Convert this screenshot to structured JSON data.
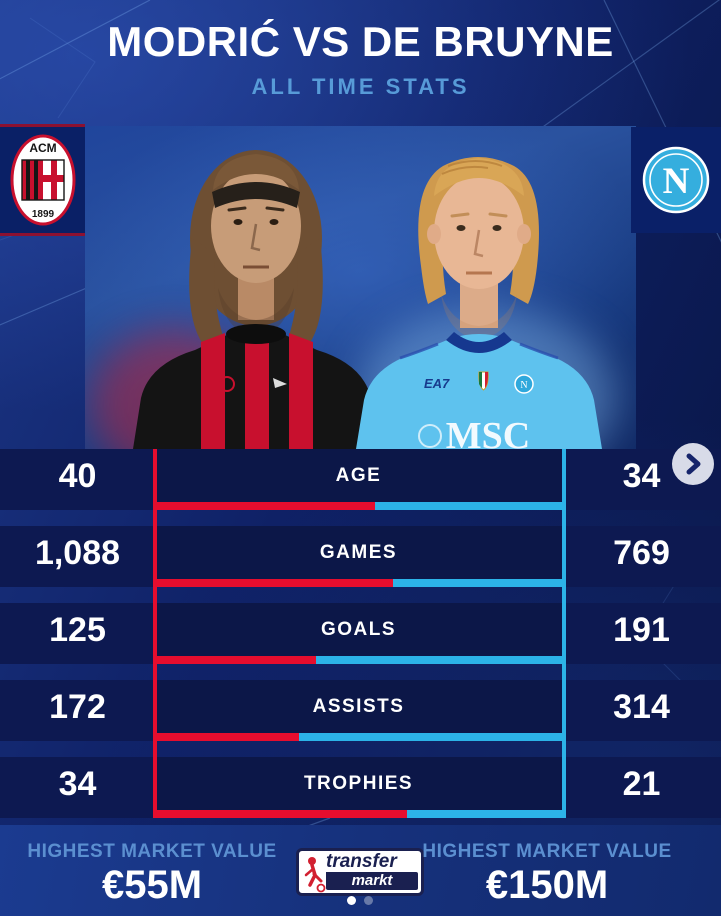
{
  "header": {
    "title": "MODRIĆ VS DE BRUYNE",
    "subtitle": "ALL TIME STATS"
  },
  "badges": {
    "left": {
      "team": "AC Milan",
      "top_text": "ACM",
      "bottom_text": "1899"
    },
    "right": {
      "team": "SSC Napoli",
      "letter": "N"
    }
  },
  "players": {
    "left": {
      "name": "Modrić",
      "shirt": "AC Milan red-black stripes"
    },
    "right": {
      "name": "De Bruyne",
      "shirt_text_brand": "EA7",
      "shirt_text_sponsor": "MSC"
    }
  },
  "chart_data": {
    "type": "bar",
    "categories": [
      "AGE",
      "GAMES",
      "GOALS",
      "ASSISTS",
      "TROPHIES"
    ],
    "series": [
      {
        "name": "Modrić",
        "side": "left",
        "color": "#e60d2e",
        "values": [
          40,
          1088,
          125,
          172,
          34
        ]
      },
      {
        "name": "De Bruyne",
        "side": "right",
        "color": "#2cb3e8",
        "values": [
          34,
          769,
          191,
          314,
          21
        ]
      }
    ],
    "title": "MODRIĆ VS DE BRUYNE",
    "subtitle": "ALL TIME STATS",
    "note": "each row bar is split by left share vs right share of the two values",
    "legend_position": "none",
    "grid": false
  },
  "rows": [
    {
      "label": "AGE",
      "left": "40",
      "right": "34",
      "left_num": 40,
      "right_num": 34
    },
    {
      "label": "GAMES",
      "left": "1,088",
      "right": "769",
      "left_num": 1088,
      "right_num": 769
    },
    {
      "label": "GOALS",
      "left": "125",
      "right": "191",
      "left_num": 125,
      "right_num": 191
    },
    {
      "label": "ASSISTS",
      "left": "172",
      "right": "314",
      "left_num": 172,
      "right_num": 314
    },
    {
      "label": "TROPHIES",
      "left": "34",
      "right": "21",
      "left_num": 34,
      "right_num": 21
    }
  ],
  "nav": {
    "next_label": "next stats page",
    "dot_count": 2
  },
  "footer": {
    "left": {
      "label": "HIGHEST MARKET VALUE",
      "value": "€55M"
    },
    "right": {
      "label": "HIGHEST MARKET VALUE",
      "value": "€150M"
    },
    "logo": {
      "line1": "transfer",
      "line2": "markt"
    }
  },
  "colors": {
    "left_accent": "#e60d2e",
    "right_accent": "#2cb3e8",
    "subtitle_blue": "#579bd8",
    "footer_label_blue": "#5b8fd0",
    "band_navy": "#0d1951",
    "chevron_circle": "#d8dbe8"
  }
}
